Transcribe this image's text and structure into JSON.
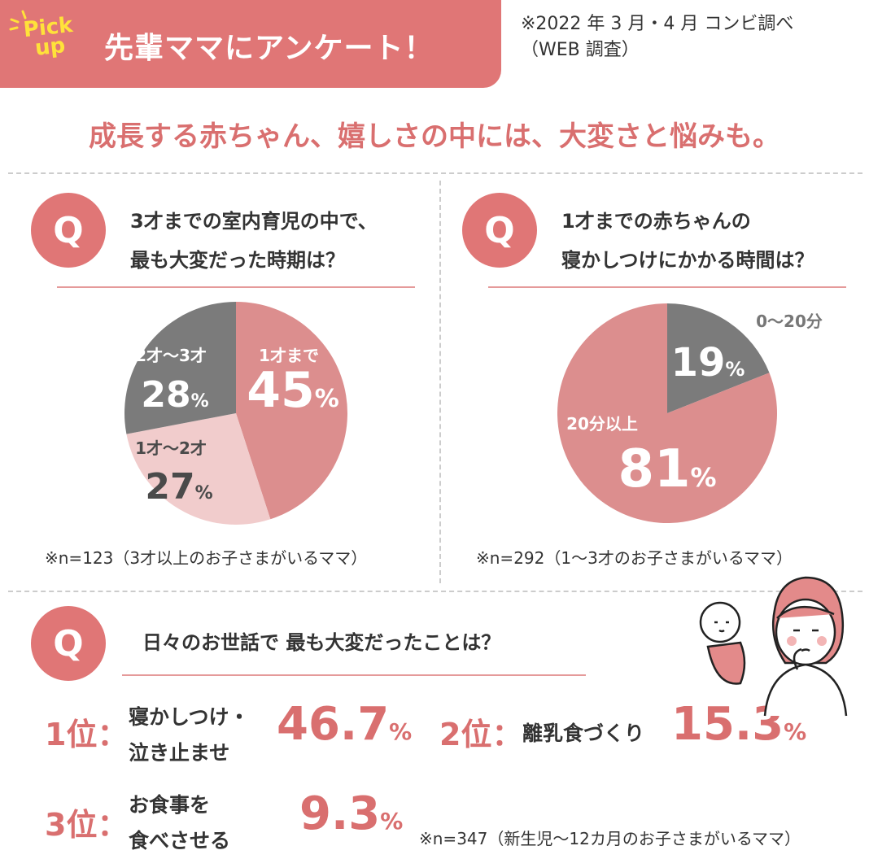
{
  "header": {
    "badge_line1": "Pick",
    "badge_line2": "up",
    "title": "先輩ママにアンケート！",
    "source_line1": "※2022 年 3 月・4 月 コンビ調べ",
    "source_line2": "（WEB 調査）"
  },
  "subtitle": "成長する赤ちゃん、嬉しさの中には、大変さと悩みも。",
  "q_mark": "Q",
  "q1": {
    "line1": "3才までの室内育児の中で、",
    "line2": "最も大変だった時期は？",
    "note": "※n=123（3才以上のお子さまがいるママ）"
  },
  "q2": {
    "line1": "1才までの赤ちゃんの",
    "line2": "寝かしつけにかかる時間は？",
    "note": "※n=292（1～3才のお子さまがいるママ）"
  },
  "q3": {
    "title": "日々のお世話で 最も大変だったことは？",
    "note": "※n=347（新生児～12カ月のお子さまがいるママ）",
    "ranks": [
      {
        "rank": "1位：",
        "line1": "寝かしつけ・",
        "line2": "泣き止ませ",
        "value": "46.7",
        "unit": "%"
      },
      {
        "rank": "2位：",
        "line1": "離乳食づくり",
        "line2": "",
        "value": "15.3",
        "unit": "%"
      },
      {
        "rank": "3位：",
        "line1": "お食事を",
        "line2": "食べさせる",
        "value": "9.3",
        "unit": "%"
      }
    ]
  },
  "colors": {
    "accent": "#e07676",
    "text_accent": "#d96f6f",
    "pink": "#dc8e8e",
    "light_pink": "#f1cccc",
    "gray": "#7b7b7b",
    "badge": "#ffe23a"
  },
  "chart_data": [
    {
      "type": "pie",
      "title": "3才までの室内育児の中で、最も大変だった時期は？",
      "unit": "%",
      "slices": [
        {
          "label": "1才まで",
          "value": 45,
          "color": "#dc8e8e",
          "text": "#fff"
        },
        {
          "label": "1才～2才",
          "value": 27,
          "color": "#f1cccc",
          "text": "#4a4a4a"
        },
        {
          "label": "2才～3才",
          "value": 28,
          "color": "#7b7b7b",
          "text": "#fff"
        }
      ]
    },
    {
      "type": "pie",
      "title": "1才までの赤ちゃんの寝かしつけにかかる時間は？",
      "unit": "%",
      "slices": [
        {
          "label": "0～20分",
          "value": 19,
          "color": "#7b7b7b",
          "text": "#fff"
        },
        {
          "label": "20分以上",
          "value": 81,
          "color": "#dc8e8e",
          "text": "#fff"
        }
      ]
    }
  ]
}
